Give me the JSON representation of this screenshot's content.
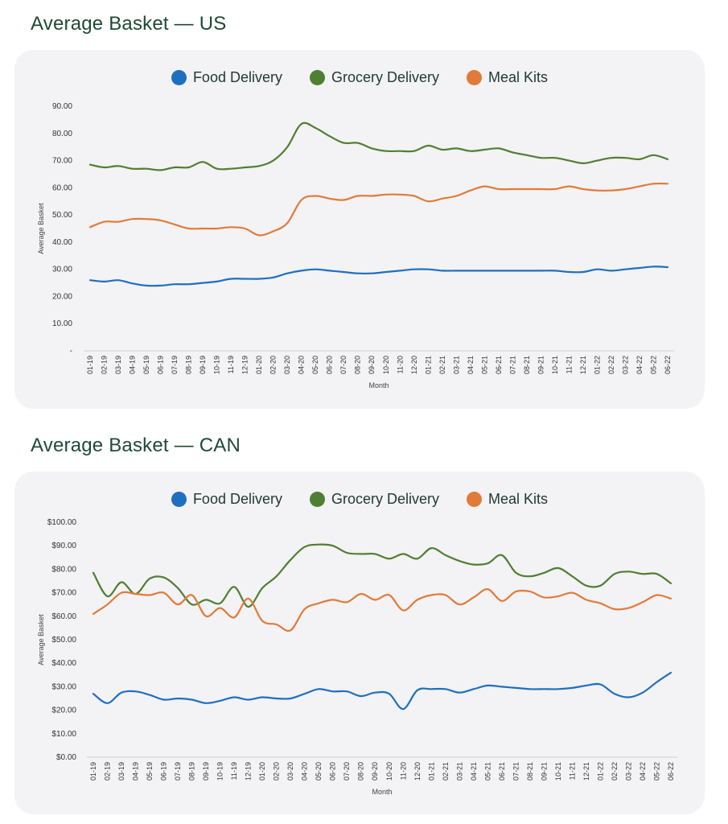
{
  "colors": {
    "food": "#1f6fbf",
    "grocery": "#4f7f32",
    "meal": "#e07b3a",
    "title": "#1f4a36"
  },
  "chart_data": [
    {
      "type": "line",
      "title": "Average Basket — US",
      "xlabel": "Month",
      "ylabel": "Average Basket",
      "ylim": [
        0,
        90
      ],
      "yticks": [
        {
          "v": 0,
          "label": "-"
        },
        {
          "v": 10,
          "label": "10.00"
        },
        {
          "v": 20,
          "label": "20.00"
        },
        {
          "v": 30,
          "label": "30.00"
        },
        {
          "v": 40,
          "label": "40.00"
        },
        {
          "v": 50,
          "label": "50.00"
        },
        {
          "v": 60,
          "label": "60.00"
        },
        {
          "v": 70,
          "label": "70.00"
        },
        {
          "v": 80,
          "label": "80.00"
        },
        {
          "v": 90,
          "label": "90.00"
        }
      ],
      "legend": "top",
      "grid": false,
      "categories": [
        "01-19",
        "02-19",
        "03-19",
        "04-19",
        "05-19",
        "06-19",
        "07-19",
        "08-19",
        "09-19",
        "10-19",
        "11-19",
        "12-19",
        "01-20",
        "02-20",
        "03-20",
        "04-20",
        "05-20",
        "06-20",
        "07-20",
        "08-20",
        "09-20",
        "10-20",
        "11-20",
        "12-20",
        "01-21",
        "02-21",
        "03-21",
        "04-21",
        "05-21",
        "06-21",
        "07-21",
        "08-21",
        "09-21",
        "10-21",
        "11-21",
        "12-21",
        "01-22",
        "02-22",
        "03-22",
        "04-22",
        "05-22",
        "06-22"
      ],
      "series": [
        {
          "name": "Food Delivery",
          "color_key": "food",
          "values": [
            26,
            25.5,
            26,
            24.8,
            24,
            24,
            24.5,
            24.5,
            25,
            25.5,
            26.5,
            26.5,
            26.5,
            27,
            28.5,
            29.5,
            30,
            29.5,
            29,
            28.5,
            28.5,
            29,
            29.5,
            30,
            30,
            29.5,
            29.5,
            29.5,
            29.5,
            29.5,
            29.5,
            29.5,
            29.5,
            29.5,
            29,
            29,
            30,
            29.5,
            30,
            30.5,
            31,
            30.8
          ]
        },
        {
          "name": "Grocery Delivery",
          "color_key": "grocery",
          "values": [
            68.5,
            67.5,
            68,
            67,
            67,
            66.5,
            67.5,
            67.5,
            69.5,
            67,
            67,
            67.5,
            68,
            70,
            75,
            83.5,
            82,
            79,
            76.5,
            76.5,
            74.5,
            73.5,
            73.5,
            73.5,
            75.5,
            74,
            74.5,
            73.5,
            74,
            74.5,
            73,
            72,
            71,
            71,
            70,
            69,
            70,
            71,
            71,
            70.5,
            72,
            70.5
          ]
        },
        {
          "name": "Meal Kits",
          "color_key": "meal",
          "values": [
            45.5,
            47.5,
            47.5,
            48.5,
            48.5,
            48,
            46.5,
            45,
            45,
            45,
            45.5,
            45,
            42.5,
            44,
            47,
            55.5,
            57,
            56,
            55.5,
            57,
            57,
            57.5,
            57.5,
            57,
            55,
            56,
            57,
            59,
            60.5,
            59.5,
            59.5,
            59.5,
            59.5,
            59.5,
            60.5,
            59.5,
            59,
            59,
            59.5,
            60.5,
            61.5,
            61.5
          ]
        }
      ]
    },
    {
      "type": "line",
      "title": "Average Basket — CAN",
      "xlabel": "Month",
      "ylabel": "Average Basket",
      "ylim": [
        0,
        100
      ],
      "yticks": [
        {
          "v": 0,
          "label": "$0.00"
        },
        {
          "v": 10,
          "label": "$10.00"
        },
        {
          "v": 20,
          "label": "$20.00"
        },
        {
          "v": 30,
          "label": "$30.00"
        },
        {
          "v": 40,
          "label": "$40.00"
        },
        {
          "v": 50,
          "label": "$50.00"
        },
        {
          "v": 60,
          "label": "$60.00"
        },
        {
          "v": 70,
          "label": "$70.00"
        },
        {
          "v": 80,
          "label": "$80.00"
        },
        {
          "v": 90,
          "label": "$90.00"
        },
        {
          "v": 100,
          "label": "$100.00"
        }
      ],
      "legend": "top",
      "grid": false,
      "categories": [
        "01-19",
        "02-19",
        "03-19",
        "04-19",
        "05-19",
        "06-19",
        "07-19",
        "08-19",
        "09-19",
        "10-19",
        "11-19",
        "12-19",
        "01-20",
        "02-20",
        "03-20",
        "04-20",
        "05-20",
        "06-20",
        "07-20",
        "08-20",
        "09-20",
        "10-20",
        "11-20",
        "12-20",
        "01-21",
        "02-21",
        "03-21",
        "04-21",
        "05-21",
        "06-21",
        "07-21",
        "08-21",
        "09-21",
        "10-21",
        "11-21",
        "12-21",
        "01-22",
        "02-22",
        "03-22",
        "04-22",
        "05-22",
        "06-22"
      ],
      "series": [
        {
          "name": "Food Delivery",
          "color_key": "food",
          "values": [
            27,
            23,
            27.5,
            28,
            26.5,
            24.5,
            25,
            24.5,
            23,
            24,
            25.5,
            24.5,
            25.5,
            25,
            25,
            27,
            29,
            28,
            28,
            26,
            27.5,
            27,
            20.5,
            28.5,
            29,
            29,
            27.5,
            29,
            30.5,
            30,
            29.5,
            29,
            29,
            29,
            29.5,
            30.5,
            31,
            27,
            25.5,
            27.5,
            32,
            36
          ]
        },
        {
          "name": "Grocery Delivery",
          "color_key": "grocery",
          "values": [
            78.5,
            68.5,
            74.5,
            69.5,
            76,
            76.5,
            72,
            65,
            67,
            65.5,
            72.5,
            64,
            72,
            77,
            84,
            89.5,
            90.5,
            90,
            87,
            86.5,
            86.5,
            84.5,
            86.5,
            84.5,
            89,
            86,
            83.5,
            82,
            82.5,
            86,
            78.5,
            77,
            78.5,
            80.5,
            77,
            73,
            73,
            78,
            79,
            78,
            78,
            74
          ]
        },
        {
          "name": "Meal Kits",
          "color_key": "meal",
          "values": [
            61,
            65,
            70,
            69.5,
            69,
            70,
            65,
            69,
            60,
            63.5,
            59.5,
            67.5,
            58,
            56.5,
            54,
            63,
            65.5,
            67,
            66,
            69.5,
            67,
            69,
            62.5,
            67,
            69,
            69,
            65,
            68,
            71.5,
            66.5,
            70.5,
            70.5,
            68,
            68.5,
            70,
            67,
            65.5,
            63,
            63.5,
            66,
            69,
            67.5
          ]
        }
      ]
    }
  ]
}
